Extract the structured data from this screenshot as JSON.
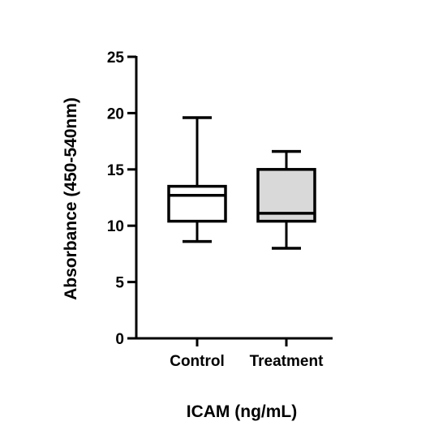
{
  "chart_data": {
    "type": "box",
    "title": "",
    "xlabel": "ICAM (ng/mL)",
    "ylabel": "Absorbance (450-540nm)",
    "ylim": [
      0,
      25
    ],
    "yticks": [
      0,
      5,
      10,
      15,
      20,
      25
    ],
    "grid": false,
    "categories": [
      "Control",
      "Treatment"
    ],
    "boxes": [
      {
        "category": "Control",
        "min": 8.6,
        "q1": 10.4,
        "median": 12.7,
        "q3": 13.5,
        "max": 19.6,
        "fill": "#ffffff"
      },
      {
        "category": "Treatment",
        "min": 8.0,
        "q1": 10.4,
        "median": 11.1,
        "q3": 15.0,
        "max": 16.6,
        "fill": "#d9d9d9"
      }
    ],
    "colors": {
      "stroke": "#000000"
    }
  }
}
